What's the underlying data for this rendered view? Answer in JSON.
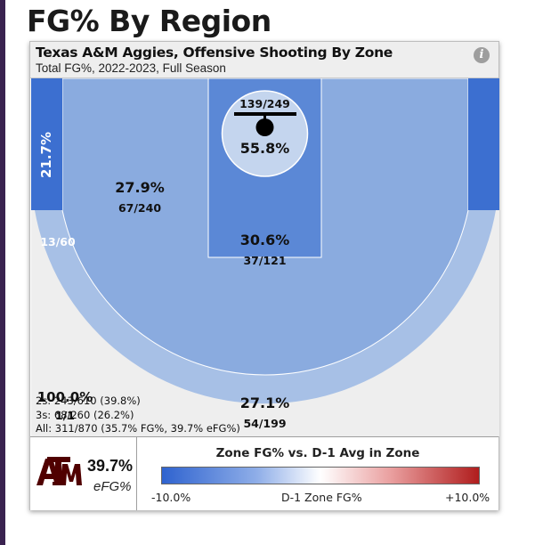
{
  "page": {
    "title": "FG% By Region"
  },
  "card": {
    "title": "Texas A&M Aggies, Offensive Shooting By Zone",
    "subtitle": "Total FG%, 2022-2023, Full Season",
    "info_icon": "info-icon"
  },
  "chart_data": {
    "type": "heatmap",
    "title": "Texas A&M Aggies, Offensive Shooting By Zone",
    "subtitle": "Total FG%, 2022-2023, Full Season",
    "zones": [
      {
        "zone": "left-corner-three",
        "pct": "21.7%",
        "made_att": "13/60",
        "made": 13,
        "attempts": 60,
        "color": "#3c6fd0"
      },
      {
        "zone": "right-corner-three",
        "pct": "",
        "made_att": "",
        "color": "#3c6fd0"
      },
      {
        "zone": "short-midrange",
        "pct": "27.9%",
        "made_att": "67/240",
        "made": 67,
        "attempts": 240,
        "color": "#8aabdf"
      },
      {
        "zone": "paint",
        "pct": "30.6%",
        "made_att": "37/121",
        "made": 37,
        "attempts": 121,
        "color": "#5b88d6"
      },
      {
        "zone": "rim",
        "pct": "55.8%",
        "made_att": "139/249",
        "made": 139,
        "attempts": 249,
        "color": "#c4d5ee"
      },
      {
        "zone": "above-break-three",
        "pct": "27.1%",
        "made_att": "54/199",
        "made": 54,
        "attempts": 199,
        "color": "#a7c0e6"
      },
      {
        "zone": "long-range",
        "pct": "100.0%",
        "made_att": "1/1",
        "made": 1,
        "attempts": 1,
        "color": "#eeeeee"
      }
    ],
    "summary": [
      "2s: 243/610 (39.8%)",
      "3s: 68/260 (26.2%)",
      "All: 311/870 (35.7% FG%, 39.7% eFG%)"
    ],
    "legend": {
      "title": "Zone FG% vs. D-1 Avg in Zone",
      "min_label": "-10.0%",
      "mid_label": "D-1 Zone FG%",
      "max_label": "+10.0%",
      "min_color": "#2f63cf",
      "mid_color": "#ffffff",
      "max_color": "#b01d1d"
    }
  },
  "team": {
    "logo": "texas-am-logo",
    "efg_value": "39.7%",
    "efg_label": "eFG%",
    "brand_color": "#500000"
  }
}
